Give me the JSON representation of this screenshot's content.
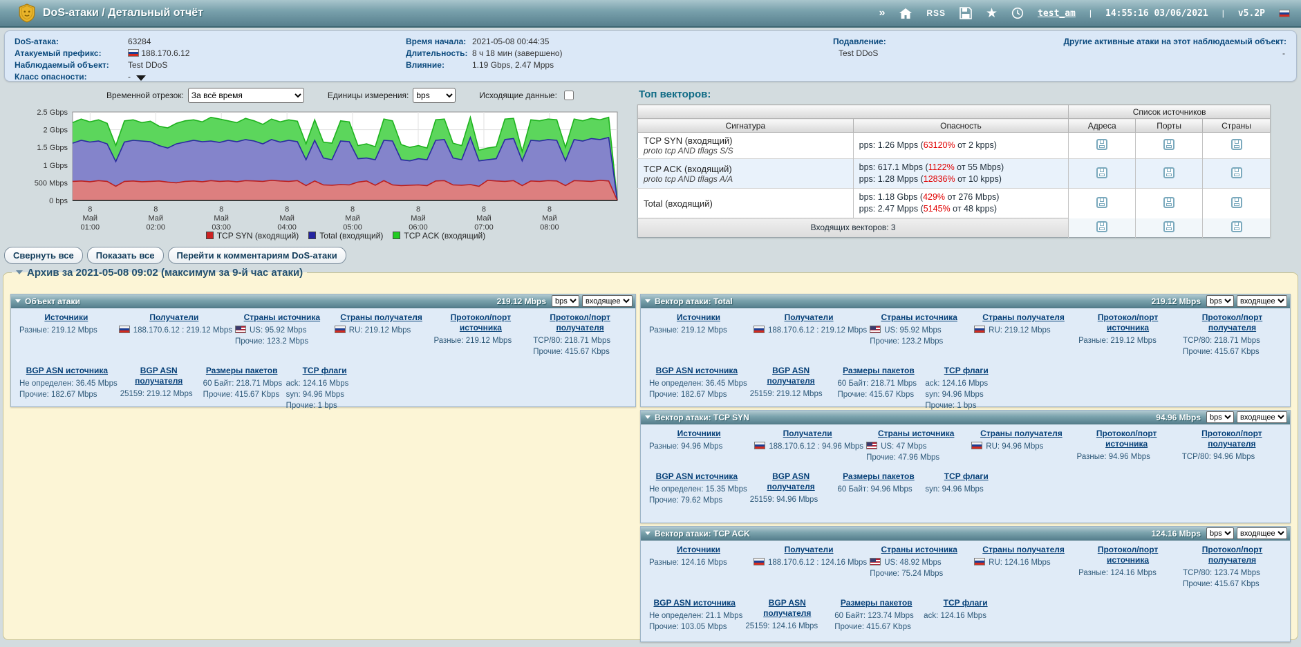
{
  "header": {
    "title": "DoS-атаки / Детальный отчёт",
    "expand_chevron": "»",
    "rss_label": "RSS",
    "user": "test_am",
    "sep": "|",
    "datetime": "14:55:16 03/06/2021",
    "version": "v5.2P"
  },
  "info": {
    "attack_id_label": "DoS-атака:",
    "attack_id": "63284",
    "prefix_label": "Атакуемый префикс:",
    "prefix": "188.170.6.12",
    "object_label": "Наблюдаемый объект:",
    "object": "Test DDoS",
    "severity_label": "Класс опасности:",
    "severity": "-",
    "start_label": "Время начала:",
    "start": "2021-05-08 00:44:35",
    "duration_label": "Длительность:",
    "duration": "8 ч 18 мин (завершено)",
    "impact_label": "Влияние:",
    "impact": "1.19 Gbps, 2.47 Mpps",
    "suppression_label": "Подавление:",
    "suppression": "Test DDoS",
    "other_label": "Другие активные атаки на этот наблюдаемый объект:",
    "other": "-"
  },
  "controls": {
    "time_range_label": "Временной отрезок:",
    "time_range_value": "За всё время",
    "units_label": "Единицы измерения:",
    "units_value": "bps",
    "outgoing_label": "Исходящие данные:",
    "outgoing_checked": false
  },
  "chart_data": {
    "type": "area",
    "stacking": "layered-cumulative-tops",
    "y_unit": "Gbps",
    "ylim": [
      0,
      2.5
    ],
    "yticks": [
      {
        "value": 0,
        "label": "0 bps"
      },
      {
        "value": 0.5,
        "label": "500 Mbps"
      },
      {
        "value": 1,
        "label": "1 Gbps"
      },
      {
        "value": 1.5,
        "label": "1.5 Gbps"
      },
      {
        "value": 2,
        "label": "2 Gbps"
      },
      {
        "value": 2.5,
        "label": "2.5 Gbps"
      }
    ],
    "xticks": [
      "8 Май 01:00",
      "8 Май 02:00",
      "8 Май 03:00",
      "8 Май 04:00",
      "8 Май 05:00",
      "8 Май 06:00",
      "8 Май 07:00",
      "8 Май 08:00"
    ],
    "x_start": "2021-05-08 00:44",
    "x_end": "2021-05-08 09:02",
    "grid": true,
    "legend_position": "bottom",
    "series": [
      {
        "name": "TCP SYN (входящий)",
        "fill": "#dd7f7f",
        "stroke": "#bb2020",
        "legend_color": "#cc2222",
        "values": [
          0.54,
          0.55,
          0.53,
          0.56,
          0.54,
          0.4,
          0.54,
          0.55,
          0.53,
          0.54,
          0.55,
          0.52,
          0.5,
          0.54,
          0.55,
          0.53,
          0.56,
          0.54,
          0.55,
          0.53,
          0.56,
          0.55,
          0.54,
          0.57,
          0.55,
          0.54,
          0.56,
          0.42,
          0.55,
          0.44,
          0.43,
          0.45,
          0.44,
          0.52,
          0.55,
          0.43,
          0.56,
          0.44,
          0.42,
          0.43,
          0.44,
          0.42,
          0.55,
          0.56,
          0.44,
          0.43,
          0.45,
          0.4,
          0.57,
          0.55,
          0.54,
          0.56,
          0.42,
          0.55,
          0.54,
          0.56,
          0.55,
          0.42,
          0.56,
          0.55,
          0.54,
          0.57,
          0.55,
          0
        ]
      },
      {
        "name": "Total (входящий)",
        "fill": "#8484cb",
        "stroke": "#2a2aa0",
        "legend_color": "#2424a0",
        "values": [
          1.62,
          1.7,
          1.65,
          1.68,
          1.6,
          1.1,
          1.65,
          1.7,
          1.68,
          1.66,
          1.55,
          1.48,
          1.6,
          1.65,
          1.7,
          1.66,
          1.68,
          1.64,
          1.7,
          1.66,
          1.72,
          1.68,
          1.6,
          1.72,
          1.65,
          1.7,
          1.66,
          1.15,
          1.7,
          1.2,
          1.15,
          1.68,
          1.66,
          1.18,
          1.2,
          1.15,
          1.7,
          1.68,
          1.15,
          1.12,
          1.18,
          1.15,
          1.7,
          1.72,
          1.2,
          1.15,
          1.78,
          1.12,
          1.15,
          1.18,
          1.72,
          1.75,
          1.12,
          1.7,
          1.68,
          1.72,
          1.7,
          1.12,
          1.72,
          1.68,
          1.75,
          1.72,
          1.78,
          0
        ]
      },
      {
        "name": "TCP ACK (входящий)",
        "fill": "#5cd65c",
        "stroke": "#1db31d",
        "legend_color": "#22cc22",
        "values": [
          2.2,
          2.3,
          2.22,
          2.28,
          2.18,
          1.55,
          2.25,
          2.28,
          2.2,
          2.24,
          2.1,
          2.05,
          2.18,
          2.25,
          2.28,
          2.22,
          2.35,
          2.3,
          2.25,
          2.2,
          2.32,
          2.25,
          2.15,
          2.3,
          2.22,
          2.28,
          2.24,
          1.6,
          2.28,
          1.65,
          1.62,
          2.25,
          2.22,
          1.55,
          1.6,
          1.52,
          2.3,
          2.25,
          1.58,
          1.5,
          1.55,
          1.48,
          2.28,
          2.3,
          1.62,
          1.55,
          2.35,
          1.42,
          1.48,
          1.52,
          2.3,
          2.32,
          1.38,
          2.28,
          2.25,
          2.3,
          2.28,
          1.5,
          2.3,
          2.25,
          2.32,
          2.28,
          2.35,
          0
        ]
      }
    ]
  },
  "top_vectors": {
    "title": "Топ векторов:",
    "col_signature": "Сигнатура",
    "col_danger": "Опасность",
    "col_group": "Список источников",
    "col_addresses": "Адреса",
    "col_ports": "Порты",
    "col_countries": "Страны",
    "rows": [
      {
        "signature": "TCP SYN (входящий)",
        "filter": "proto tcp AND tflags S/S",
        "danger": [
          {
            "prefix": "pps: 1.26 Mpps (",
            "pct": "63120%",
            "suffix": " от 2 kpps)"
          }
        ]
      },
      {
        "signature": "TCP ACK (входящий)",
        "filter": "proto tcp AND tflags A/A",
        "danger": [
          {
            "prefix": "bps: 617.1 Mbps (",
            "pct": "1122%",
            "suffix": " от 55 Mbps)"
          },
          {
            "prefix": "pps: 1.28 Mpps (",
            "pct": "12836%",
            "suffix": " от 10 kpps)"
          }
        ]
      },
      {
        "signature": "Total (входящий)",
        "filter": "",
        "danger": [
          {
            "prefix": "bps: 1.18 Gbps (",
            "pct": "429%",
            "suffix": " от 276 Mbps)"
          },
          {
            "prefix": "pps: 2.47 Mpps (",
            "pct": "5145%",
            "suffix": " от 48 kpps)"
          }
        ]
      }
    ],
    "footer": "Входящих векторов: 3"
  },
  "toolbar": {
    "collapse_all": "Свернуть все",
    "expand_all": "Показать все",
    "goto_comments": "Перейти к комментариям DoS-атаки"
  },
  "archive": {
    "title": "Архив за 2021-05-08 09:02 (максимум за 9-й час атаки)",
    "panels": [
      {
        "title": "Объект атаки",
        "badge": "219.12 Mbps",
        "unit": "bps",
        "direction": "входящее",
        "cols": [
          {
            "header": "Источники",
            "lines": [
              {
                "text": "Разные: 219.12 Mbps"
              }
            ]
          },
          {
            "header": "Получатели",
            "lines": [
              {
                "flag": "ru",
                "text": "188.170.6.12 : 219.12 Mbps"
              }
            ]
          },
          {
            "header": "Страны источника",
            "lines": [
              {
                "flag": "us",
                "text": "US: 95.92 Mbps"
              },
              {
                "text": "Прочие: 123.2 Mbps"
              }
            ]
          },
          {
            "header": "Страны получателя",
            "lines": [
              {
                "flag": "ru",
                "text": "RU: 219.12 Mbps"
              }
            ]
          },
          {
            "header": "Протокол/порт источника",
            "lines": [
              {
                "text": "Разные: 219.12 Mbps"
              }
            ]
          },
          {
            "header": "Протокол/порт получателя",
            "lines": [
              {
                "text": "TCP/80: 218.71 Mbps"
              },
              {
                "text": "Прочие: 415.67 Kbps"
              }
            ]
          }
        ],
        "cols2": [
          {
            "header": "BGP ASN источника",
            "lines": [
              {
                "text": "Не определен: 36.45 Mbps"
              },
              {
                "text": "Прочие: 182.67 Mbps"
              }
            ]
          },
          {
            "header": "BGP ASN получателя",
            "lines": [
              {
                "text": "25159: 219.12 Mbps"
              }
            ]
          },
          {
            "header": "Размеры пакетов",
            "lines": [
              {
                "text": "60 Байт: 218.71 Mbps"
              },
              {
                "text": "Прочие: 415.67 Kbps"
              }
            ]
          },
          {
            "header": "TCP флаги",
            "lines": [
              {
                "text": "ack: 124.16 Mbps"
              },
              {
                "text": "syn: 94.96 Mbps"
              },
              {
                "text": "Прочие: 1 bps"
              }
            ]
          }
        ]
      },
      {
        "title": "Вектор атаки: Total",
        "badge": "219.12 Mbps",
        "unit": "bps",
        "direction": "входящее",
        "cols": [
          {
            "header": "Источники",
            "lines": [
              {
                "text": "Разные: 219.12 Mbps"
              }
            ]
          },
          {
            "header": "Получатели",
            "lines": [
              {
                "flag": "ru",
                "text": "188.170.6.12 : 219.12 Mbps"
              }
            ]
          },
          {
            "header": "Страны источника",
            "lines": [
              {
                "flag": "us",
                "text": "US: 95.92 Mbps"
              },
              {
                "text": "Прочие: 123.2 Mbps"
              }
            ]
          },
          {
            "header": "Страны получателя",
            "lines": [
              {
                "flag": "ru",
                "text": "RU: 219.12 Mbps"
              }
            ]
          },
          {
            "header": "Протокол/порт источника",
            "lines": [
              {
                "text": "Разные: 219.12 Mbps"
              }
            ]
          },
          {
            "header": "Протокол/порт получателя",
            "lines": [
              {
                "text": "TCP/80: 218.71 Mbps"
              },
              {
                "text": "Прочие: 415.67 Kbps"
              }
            ]
          }
        ],
        "cols2": [
          {
            "header": "BGP ASN источника",
            "lines": [
              {
                "text": "Не определен: 36.45 Mbps"
              },
              {
                "text": "Прочие: 182.67 Mbps"
              }
            ]
          },
          {
            "header": "BGP ASN получателя",
            "lines": [
              {
                "text": "25159: 219.12 Mbps"
              }
            ]
          },
          {
            "header": "Размеры пакетов",
            "lines": [
              {
                "text": "60 Байт: 218.71 Mbps"
              },
              {
                "text": "Прочие: 415.67 Kbps"
              }
            ]
          },
          {
            "header": "TCP флаги",
            "lines": [
              {
                "text": "ack: 124.16 Mbps"
              },
              {
                "text": "syn: 94.96 Mbps"
              },
              {
                "text": "Прочие: 1 bps"
              }
            ]
          }
        ]
      },
      {
        "title": "Вектор атаки: TCP SYN",
        "badge": "94.96 Mbps",
        "unit": "bps",
        "direction": "входящее",
        "cols": [
          {
            "header": "Источники",
            "lines": [
              {
                "text": "Разные: 94.96 Mbps"
              }
            ]
          },
          {
            "header": "Получатели",
            "lines": [
              {
                "flag": "ru",
                "text": "188.170.6.12 : 94.96 Mbps"
              }
            ]
          },
          {
            "header": "Страны источника",
            "lines": [
              {
                "flag": "us",
                "text": "US: 47 Mbps"
              },
              {
                "text": "Прочие: 47.96 Mbps"
              }
            ]
          },
          {
            "header": "Страны получателя",
            "lines": [
              {
                "flag": "ru",
                "text": "RU: 94.96 Mbps"
              }
            ]
          },
          {
            "header": "Протокол/порт источника",
            "lines": [
              {
                "text": "Разные: 94.96 Mbps"
              }
            ]
          },
          {
            "header": "Протокол/порт получателя",
            "lines": [
              {
                "text": "TCP/80: 94.96 Mbps"
              }
            ]
          }
        ],
        "cols2": [
          {
            "header": "BGP ASN источника",
            "lines": [
              {
                "text": "Не определен: 15.35 Mbps"
              },
              {
                "text": "Прочие: 79.62 Mbps"
              }
            ]
          },
          {
            "header": "BGP ASN получателя",
            "lines": [
              {
                "text": "25159: 94.96 Mbps"
              }
            ]
          },
          {
            "header": "Размеры пакетов",
            "lines": [
              {
                "text": "60 Байт: 94.96 Mbps"
              }
            ]
          },
          {
            "header": "TCP флаги",
            "lines": [
              {
                "text": "syn: 94.96 Mbps"
              }
            ]
          }
        ]
      },
      {
        "title": "Вектор атаки: TCP ACK",
        "badge": "124.16 Mbps",
        "unit": "bps",
        "direction": "входящее",
        "cols": [
          {
            "header": "Источники",
            "lines": [
              {
                "text": "Разные: 124.16 Mbps"
              }
            ]
          },
          {
            "header": "Получатели",
            "lines": [
              {
                "flag": "ru",
                "text": "188.170.6.12 : 124.16 Mbps"
              }
            ]
          },
          {
            "header": "Страны источника",
            "lines": [
              {
                "flag": "us",
                "text": "US: 48.92 Mbps"
              },
              {
                "text": "Прочие: 75.24 Mbps"
              }
            ]
          },
          {
            "header": "Страны получателя",
            "lines": [
              {
                "flag": "ru",
                "text": "RU: 124.16 Mbps"
              }
            ]
          },
          {
            "header": "Протокол/порт источника",
            "lines": [
              {
                "text": "Разные: 124.16 Mbps"
              }
            ]
          },
          {
            "header": "Протокол/порт получателя",
            "lines": [
              {
                "text": "TCP/80: 123.74 Mbps"
              },
              {
                "text": "Прочие: 415.67 Kbps"
              }
            ]
          }
        ],
        "cols2": [
          {
            "header": "BGP ASN источника",
            "lines": [
              {
                "text": "Не определен: 21.1 Mbps"
              },
              {
                "text": "Прочие: 103.05 Mbps"
              }
            ]
          },
          {
            "header": "BGP ASN получателя",
            "lines": [
              {
                "text": "25159: 124.16 Mbps"
              }
            ]
          },
          {
            "header": "Размеры пакетов",
            "lines": [
              {
                "text": "60 Байт: 123.74 Mbps"
              },
              {
                "text": "Прочие: 415.67 Kbps"
              }
            ]
          },
          {
            "header": "TCP флаги",
            "lines": [
              {
                "text": "ack: 124.16 Mbps"
              }
            ]
          }
        ]
      }
    ]
  }
}
